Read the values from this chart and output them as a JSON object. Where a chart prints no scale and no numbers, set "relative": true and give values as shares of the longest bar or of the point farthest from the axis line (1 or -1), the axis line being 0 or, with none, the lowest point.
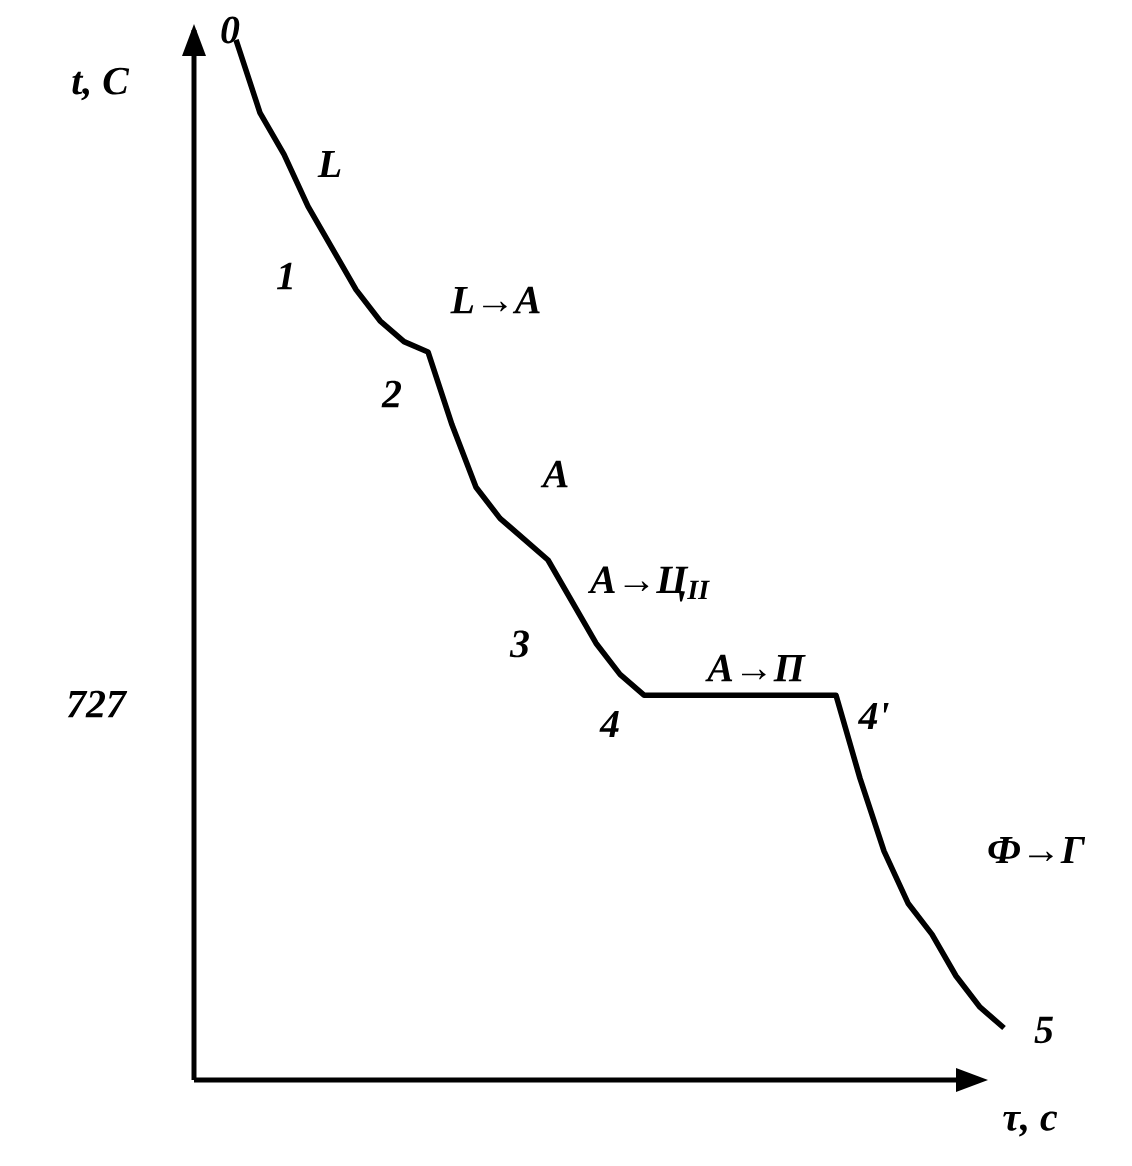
{
  "chart_data": {
    "type": "line",
    "relative": true,
    "xlabel": "τ, c",
    "ylabel": "t, C",
    "color": "#000000",
    "categories": [
      null,
      null,
      null,
      null,
      null,
      null,
      null,
      null,
      null,
      null,
      null,
      null,
      null,
      null,
      null,
      null,
      null,
      null,
      null,
      null,
      null,
      null,
      null,
      null,
      null,
      null,
      null,
      null,
      null,
      null,
      null,
      null,
      null
    ],
    "values": [
      1.0,
      0.93,
      0.89,
      0.84,
      0.8,
      0.76,
      0.73,
      0.71,
      0.7,
      0.63,
      0.57,
      0.54,
      0.52,
      0.5,
      0.46,
      0.42,
      0.39,
      0.37,
      0.37,
      0.37,
      0.37,
      0.37,
      0.37,
      0.37,
      0.37,
      0.37,
      0.29,
      0.22,
      0.17,
      0.14,
      0.1,
      0.07,
      0.05
    ],
    "annotations": [
      "0",
      "L",
      "1",
      "L→A",
      "2",
      "A",
      "3",
      "A→Ц$_{II}$",
      "4",
      "A→П",
      "4'",
      "Ф→Г",
      "5",
      "727"
    ]
  }
}
